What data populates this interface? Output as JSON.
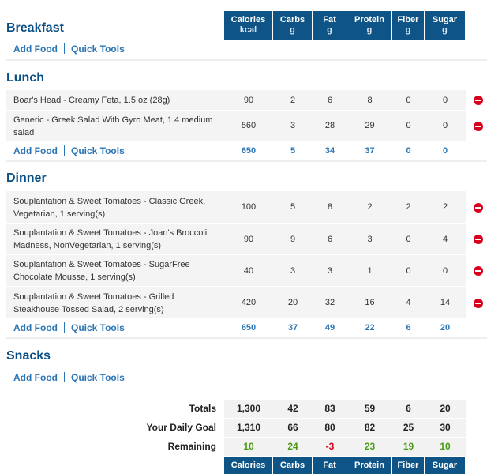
{
  "columns": [
    {
      "label": "Calories",
      "unit": "kcal"
    },
    {
      "label": "Carbs",
      "unit": "g"
    },
    {
      "label": "Fat",
      "unit": "g"
    },
    {
      "label": "Protein",
      "unit": "g"
    },
    {
      "label": "Fiber",
      "unit": "g"
    },
    {
      "label": "Sugar",
      "unit": "g"
    }
  ],
  "links": {
    "add_food": "Add Food",
    "quick_tools": "Quick Tools"
  },
  "meals": [
    {
      "title": "Breakfast",
      "items": [],
      "totals": null
    },
    {
      "title": "Lunch",
      "items": [
        {
          "name": "Boar's Head - Creamy Feta, 1.5 oz (28g)",
          "values": [
            "90",
            "2",
            "6",
            "8",
            "0",
            "0"
          ]
        },
        {
          "name": "Generic - Greek Salad With Gyro Meat, 1.4 medium salad",
          "values": [
            "560",
            "3",
            "28",
            "29",
            "0",
            "0"
          ]
        }
      ],
      "totals": [
        "650",
        "5",
        "34",
        "37",
        "0",
        "0"
      ]
    },
    {
      "title": "Dinner",
      "items": [
        {
          "name": "Souplantation & Sweet Tomatoes - Classic Greek, Vegetarian, 1 serving(s)",
          "values": [
            "100",
            "5",
            "8",
            "2",
            "2",
            "2"
          ]
        },
        {
          "name": "Souplantation & Sweet Tomatoes - Joan's Broccoli Madness, NonVegetarian, 1 serving(s)",
          "values": [
            "90",
            "9",
            "6",
            "3",
            "0",
            "4"
          ]
        },
        {
          "name": "Souplantation & Sweet Tomatoes - SugarFree Chocolate Mousse, 1 serving(s)",
          "values": [
            "40",
            "3",
            "3",
            "1",
            "0",
            "0"
          ]
        },
        {
          "name": "Souplantation & Sweet Tomatoes - Grilled Steakhouse Tossed Salad, 2 serving(s)",
          "values": [
            "420",
            "20",
            "32",
            "16",
            "4",
            "14"
          ]
        }
      ],
      "totals": [
        "650",
        "37",
        "49",
        "22",
        "6",
        "20"
      ]
    },
    {
      "title": "Snacks",
      "items": [],
      "totals": null
    }
  ],
  "summary": [
    {
      "label": "Totals",
      "values": [
        "1,300",
        "42",
        "83",
        "59",
        "6",
        "20"
      ]
    },
    {
      "label": "Your Daily Goal",
      "values": [
        "1,310",
        "66",
        "80",
        "82",
        "25",
        "30"
      ]
    },
    {
      "label": "Remaining",
      "values": [
        "10",
        "24",
        "-3",
        "23",
        "19",
        "10"
      ]
    }
  ],
  "colors": {
    "header": "#0e5487",
    "link": "#2c76b5",
    "positive": "#4c9a16",
    "negative": "#e0001b",
    "delete": "#d6001c"
  }
}
